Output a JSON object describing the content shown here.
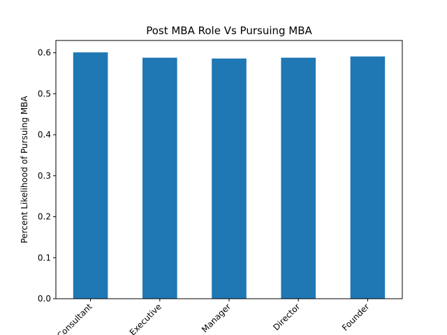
{
  "chart_data": {
    "type": "bar",
    "title": "Post MBA Role Vs Pursuing MBA",
    "xlabel": "",
    "ylabel": "Percent Likelihood of Pursuing MBA",
    "categories": [
      "Consultant",
      "Executive",
      "Manager",
      "Director",
      "Founder"
    ],
    "values": [
      0.601,
      0.588,
      0.586,
      0.588,
      0.591
    ],
    "ylim": [
      0,
      0.63
    ],
    "yticks": [
      0.0,
      0.1,
      0.2,
      0.3,
      0.4,
      0.5,
      0.6
    ],
    "ytick_labels": [
      "0.0",
      "0.1",
      "0.2",
      "0.3",
      "0.4",
      "0.5",
      "0.6"
    ],
    "bar_color": "#1f77b4",
    "grid": false,
    "legend": "none"
  }
}
